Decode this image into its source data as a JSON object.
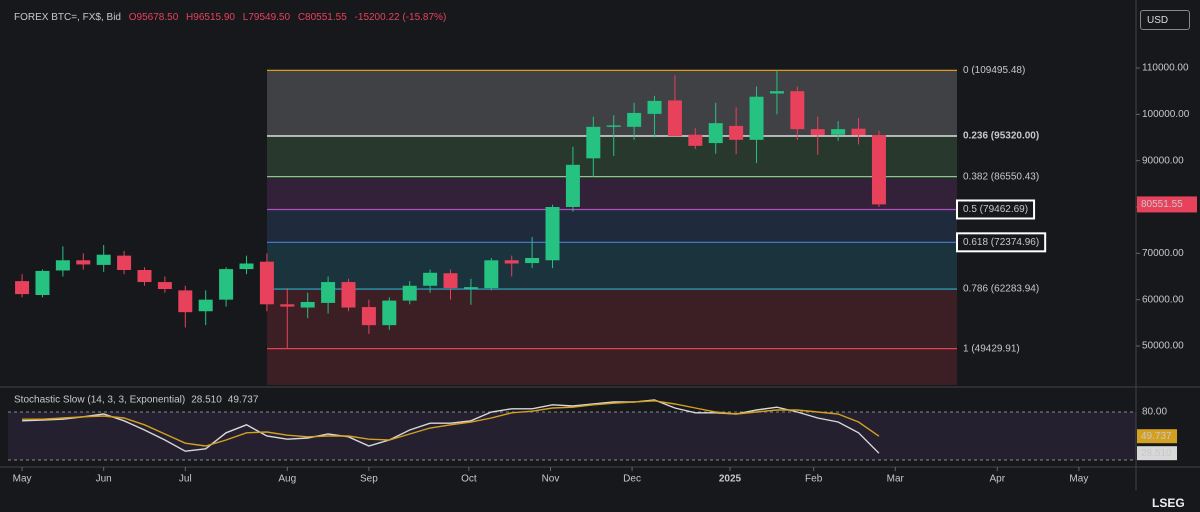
{
  "header": {
    "symbol": "FOREX BTC=, FX$, Bid",
    "ohlc": [
      "O95678.50",
      "H96515.90",
      "L79549.50",
      "C80551.55"
    ],
    "change": "-15200.22 (-15.87%)",
    "currency": "USD",
    "brand": "LSEG"
  },
  "chart_data": [
    {
      "type": "candlestick",
      "x": [
        0,
        1,
        2,
        3,
        4,
        5,
        6,
        7,
        8,
        9,
        10,
        11,
        12,
        13,
        14,
        15,
        16,
        17,
        18,
        19,
        20,
        21,
        22,
        23,
        24,
        25,
        26,
        27,
        28,
        29,
        30,
        31,
        32,
        33,
        34,
        35,
        36,
        37,
        38,
        39,
        40,
        41,
        42
      ],
      "open": [
        64000,
        61000,
        66300,
        68500,
        67500,
        69500,
        66400,
        63800,
        62000,
        57500,
        60000,
        66600,
        68200,
        59000,
        58300,
        59300,
        63800,
        58400,
        54500,
        59800,
        63000,
        65700,
        62400,
        62500,
        68500,
        67900,
        68500,
        80000,
        90500,
        97300,
        97300,
        100100,
        103000,
        95600,
        93800,
        97500,
        94500,
        104500,
        105000,
        96800,
        95600,
        96900,
        95500
      ],
      "high": [
        65500,
        66500,
        71500,
        70000,
        71800,
        70500,
        67000,
        65000,
        63000,
        62000,
        67000,
        69500,
        70000,
        62500,
        61500,
        65000,
        64500,
        60000,
        60500,
        64000,
        66500,
        66500,
        64500,
        69000,
        69500,
        73500,
        80500,
        93000,
        99500,
        99800,
        102500,
        104000,
        108400,
        97000,
        102500,
        101500,
        106000,
        109500,
        106000,
        99500,
        98500,
        99200,
        96500
      ],
      "low": [
        60500,
        60500,
        65000,
        66500,
        66000,
        65500,
        63000,
        61500,
        54000,
        54500,
        58500,
        65500,
        57500,
        49500,
        56000,
        57000,
        57500,
        52600,
        53500,
        59000,
        61500,
        60000,
        58900,
        62000,
        65000,
        66800,
        66800,
        79000,
        86500,
        91000,
        94500,
        95000,
        95400,
        92500,
        91500,
        91400,
        89500,
        100000,
        94500,
        91300,
        94300,
        93500,
        80000
      ],
      "close": [
        61200,
        66200,
        68500,
        67600,
        69700,
        66400,
        63800,
        62300,
        57300,
        60000,
        66600,
        67800,
        59000,
        58500,
        59500,
        63800,
        58300,
        54500,
        59800,
        63000,
        65800,
        62500,
        62700,
        68500,
        67800,
        69000,
        80000,
        89100,
        97300,
        97600,
        100300,
        102900,
        95300,
        93200,
        98100,
        94500,
        103800,
        105000,
        96800,
        95500,
        96800,
        95500,
        80551.55
      ],
      "up_color": "#26c281",
      "down_color": "#e8415b",
      "xlim": [
        -0.69,
        54.6
      ],
      "xticks": [
        {
          "value": 0,
          "label": "May"
        },
        {
          "value": 4,
          "label": "Jun"
        },
        {
          "value": 8,
          "label": "Jul"
        },
        {
          "value": 13,
          "label": "Aug"
        },
        {
          "value": 17,
          "label": "Sep"
        },
        {
          "value": 21.9,
          "label": "Oct"
        },
        {
          "value": 25.9,
          "label": "Nov"
        },
        {
          "value": 29.9,
          "label": "Dec"
        },
        {
          "value": 34.7,
          "label": "2025"
        },
        {
          "value": 38.8,
          "label": "Feb"
        },
        {
          "value": 42.8,
          "label": "Mar"
        },
        {
          "value": 47.8,
          "label": "Apr"
        },
        {
          "value": 51.8,
          "label": "May"
        }
      ],
      "ylim": [
        41580,
        122950
      ],
      "yticks": [
        {
          "value": 50000,
          "label": "50000.00"
        },
        {
          "value": 60000,
          "label": "60000.00"
        },
        {
          "value": 70000,
          "label": "70000.00"
        },
        {
          "value": 80000,
          "label": "80000.00"
        },
        {
          "value": 90000,
          "label": "90000.00"
        },
        {
          "value": 100000,
          "label": "100000.00"
        },
        {
          "value": 110000,
          "label": "110000.00"
        }
      ],
      "fib_levels": [
        {
          "label": "0 (109495.48)",
          "value": 109495.48,
          "color": "#f7a21b"
        },
        {
          "label": "0.236 (95320.00)",
          "value": 95320,
          "color": "#ffffff"
        },
        {
          "label": "0.382 (86550.43)",
          "value": 86550.43,
          "color": "#7fcf7f"
        },
        {
          "label": "0.5 (79462.69)",
          "value": 79462.69,
          "color": "#b04fc0",
          "highlight": true
        },
        {
          "label": "0.618 (72374.96)",
          "value": 72374.96,
          "color": "#4a7fd8",
          "highlight": true
        },
        {
          "label": "0.786 (62283.94)",
          "value": 62283.94,
          "color": "#2ab0d0"
        },
        {
          "label": "1 (49429.91)",
          "value": 49429.91,
          "color": "#e84050"
        }
      ]
    },
    {
      "type": "line",
      "title": "Stochastic Slow (14, 3, 3, Exponential)",
      "x": [
        0,
        1,
        2,
        3,
        4,
        5,
        6,
        7,
        8,
        9,
        10,
        11,
        12,
        13,
        14,
        15,
        16,
        17,
        18,
        19,
        20,
        21,
        22,
        23,
        24,
        25,
        26,
        27,
        28,
        29,
        30,
        31,
        32,
        33,
        34,
        35,
        36,
        37,
        38,
        39,
        40,
        41,
        42
      ],
      "series": [
        {
          "color": "#d8d8d8",
          "value_label": "28.510",
          "values": [
            69,
            70,
            71,
            74,
            77.5,
            69,
            57.5,
            45,
            31,
            34,
            54,
            64,
            50,
            46,
            47.5,
            52.5,
            49,
            37.5,
            45,
            57.5,
            66,
            66,
            69,
            80,
            84,
            84,
            89,
            87.5,
            90,
            92.5,
            92.5,
            95,
            85,
            79,
            79,
            77.5,
            82.5,
            86,
            80,
            72.5,
            67.5,
            54,
            28.51
          ]
        },
        {
          "color": "#d4a020",
          "value_label": "49.737",
          "values": [
            71,
            71,
            72.5,
            74,
            75,
            72.5,
            64,
            52.5,
            41,
            37.5,
            45,
            54,
            55,
            51,
            49,
            50,
            50,
            46,
            45,
            52.5,
            60,
            64,
            67.5,
            72.5,
            79,
            81,
            85,
            86,
            89,
            91,
            92.5,
            94,
            90,
            85,
            80,
            77.5,
            80,
            82.5,
            82.5,
            80,
            77.5,
            67.5,
            49.737
          ]
        }
      ],
      "ylim": [
        13.75,
        107.5
      ],
      "yticks": [
        {
          "value": 80,
          "label": "80.00"
        }
      ],
      "levels": [
        20,
        80
      ]
    }
  ]
}
